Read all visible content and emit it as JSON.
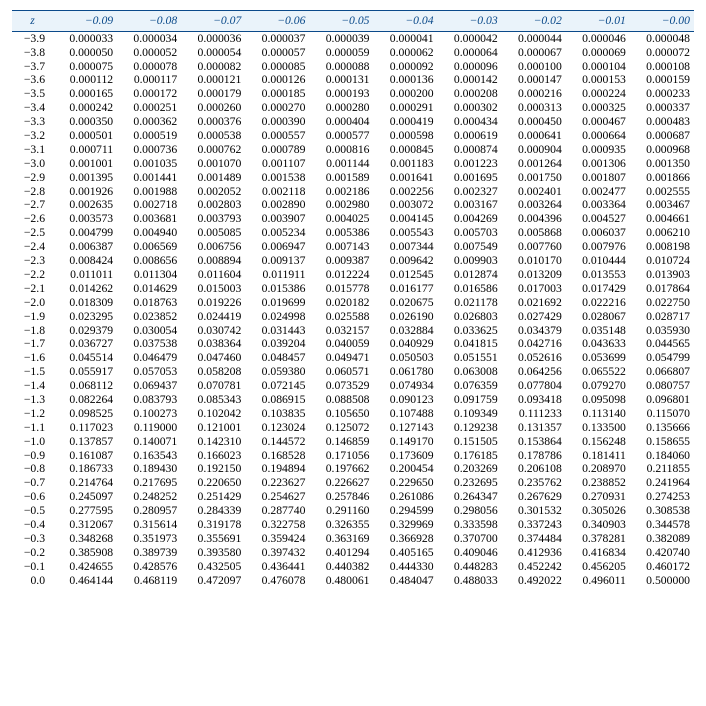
{
  "table": {
    "type": "table",
    "header_bg": "#eaf3fa",
    "header_color": "#0b4a8a",
    "rule_color": "#0b4a8a",
    "font_family": "Times New Roman",
    "header_fontsize_pt": 9,
    "body_fontsize_pt": 9,
    "z_label": "z",
    "minus_glyph": "−",
    "columns": [
      "−0.09",
      "−0.08",
      "−0.07",
      "−0.06",
      "−0.05",
      "−0.04",
      "−0.03",
      "−0.02",
      "−0.01",
      "−0.00"
    ],
    "rows": [
      {
        "z": "−3.9",
        "v": [
          "0.000033",
          "0.000034",
          "0.000036",
          "0.000037",
          "0.000039",
          "0.000041",
          "0.000042",
          "0.000044",
          "0.000046",
          "0.000048"
        ]
      },
      {
        "z": "−3.8",
        "v": [
          "0.000050",
          "0.000052",
          "0.000054",
          "0.000057",
          "0.000059",
          "0.000062",
          "0.000064",
          "0.000067",
          "0.000069",
          "0.000072"
        ]
      },
      {
        "z": "−3.7",
        "v": [
          "0.000075",
          "0.000078",
          "0.000082",
          "0.000085",
          "0.000088",
          "0.000092",
          "0.000096",
          "0.000100",
          "0.000104",
          "0.000108"
        ]
      },
      {
        "z": "−3.6",
        "v": [
          "0.000112",
          "0.000117",
          "0.000121",
          "0.000126",
          "0.000131",
          "0.000136",
          "0.000142",
          "0.000147",
          "0.000153",
          "0.000159"
        ]
      },
      {
        "z": "−3.5",
        "v": [
          "0.000165",
          "0.000172",
          "0.000179",
          "0.000185",
          "0.000193",
          "0.000200",
          "0.000208",
          "0.000216",
          "0.000224",
          "0.000233"
        ]
      },
      {
        "z": "−3.4",
        "v": [
          "0.000242",
          "0.000251",
          "0.000260",
          "0.000270",
          "0.000280",
          "0.000291",
          "0.000302",
          "0.000313",
          "0.000325",
          "0.000337"
        ]
      },
      {
        "z": "−3.3",
        "v": [
          "0.000350",
          "0.000362",
          "0.000376",
          "0.000390",
          "0.000404",
          "0.000419",
          "0.000434",
          "0.000450",
          "0.000467",
          "0.000483"
        ]
      },
      {
        "z": "−3.2",
        "v": [
          "0.000501",
          "0.000519",
          "0.000538",
          "0.000557",
          "0.000577",
          "0.000598",
          "0.000619",
          "0.000641",
          "0.000664",
          "0.000687"
        ]
      },
      {
        "z": "−3.1",
        "v": [
          "0.000711",
          "0.000736",
          "0.000762",
          "0.000789",
          "0.000816",
          "0.000845",
          "0.000874",
          "0.000904",
          "0.000935",
          "0.000968"
        ]
      },
      {
        "z": "−3.0",
        "v": [
          "0.001001",
          "0.001035",
          "0.001070",
          "0.001107",
          "0.001144",
          "0.001183",
          "0.001223",
          "0.001264",
          "0.001306",
          "0.001350"
        ]
      },
      {
        "z": "−2.9",
        "v": [
          "0.001395",
          "0.001441",
          "0.001489",
          "0.001538",
          "0.001589",
          "0.001641",
          "0.001695",
          "0.001750",
          "0.001807",
          "0.001866"
        ]
      },
      {
        "z": "−2.8",
        "v": [
          "0.001926",
          "0.001988",
          "0.002052",
          "0.002118",
          "0.002186",
          "0.002256",
          "0.002327",
          "0.002401",
          "0.002477",
          "0.002555"
        ]
      },
      {
        "z": "−2.7",
        "v": [
          "0.002635",
          "0.002718",
          "0.002803",
          "0.002890",
          "0.002980",
          "0.003072",
          "0.003167",
          "0.003264",
          "0.003364",
          "0.003467"
        ]
      },
      {
        "z": "−2.6",
        "v": [
          "0.003573",
          "0.003681",
          "0.003793",
          "0.003907",
          "0.004025",
          "0.004145",
          "0.004269",
          "0.004396",
          "0.004527",
          "0.004661"
        ]
      },
      {
        "z": "−2.5",
        "v": [
          "0.004799",
          "0.004940",
          "0.005085",
          "0.005234",
          "0.005386",
          "0.005543",
          "0.005703",
          "0.005868",
          "0.006037",
          "0.006210"
        ]
      },
      {
        "z": "−2.4",
        "v": [
          "0.006387",
          "0.006569",
          "0.006756",
          "0.006947",
          "0.007143",
          "0.007344",
          "0.007549",
          "0.007760",
          "0.007976",
          "0.008198"
        ]
      },
      {
        "z": "−2.3",
        "v": [
          "0.008424",
          "0.008656",
          "0.008894",
          "0.009137",
          "0.009387",
          "0.009642",
          "0.009903",
          "0.010170",
          "0.010444",
          "0.010724"
        ]
      },
      {
        "z": "−2.2",
        "v": [
          "0.011011",
          "0.011304",
          "0.011604",
          "0.011911",
          "0.012224",
          "0.012545",
          "0.012874",
          "0.013209",
          "0.013553",
          "0.013903"
        ]
      },
      {
        "z": "−2.1",
        "v": [
          "0.014262",
          "0.014629",
          "0.015003",
          "0.015386",
          "0.015778",
          "0.016177",
          "0.016586",
          "0.017003",
          "0.017429",
          "0.017864"
        ]
      },
      {
        "z": "−2.0",
        "v": [
          "0.018309",
          "0.018763",
          "0.019226",
          "0.019699",
          "0.020182",
          "0.020675",
          "0.021178",
          "0.021692",
          "0.022216",
          "0.022750"
        ]
      },
      {
        "z": "−1.9",
        "v": [
          "0.023295",
          "0.023852",
          "0.024419",
          "0.024998",
          "0.025588",
          "0.026190",
          "0.026803",
          "0.027429",
          "0.028067",
          "0.028717"
        ]
      },
      {
        "z": "−1.8",
        "v": [
          "0.029379",
          "0.030054",
          "0.030742",
          "0.031443",
          "0.032157",
          "0.032884",
          "0.033625",
          "0.034379",
          "0.035148",
          "0.035930"
        ]
      },
      {
        "z": "−1.7",
        "v": [
          "0.036727",
          "0.037538",
          "0.038364",
          "0.039204",
          "0.040059",
          "0.040929",
          "0.041815",
          "0.042716",
          "0.043633",
          "0.044565"
        ]
      },
      {
        "z": "−1.6",
        "v": [
          "0.045514",
          "0.046479",
          "0.047460",
          "0.048457",
          "0.049471",
          "0.050503",
          "0.051551",
          "0.052616",
          "0.053699",
          "0.054799"
        ]
      },
      {
        "z": "−1.5",
        "v": [
          "0.055917",
          "0.057053",
          "0.058208",
          "0.059380",
          "0.060571",
          "0.061780",
          "0.063008",
          "0.064256",
          "0.065522",
          "0.066807"
        ]
      },
      {
        "z": "−1.4",
        "v": [
          "0.068112",
          "0.069437",
          "0.070781",
          "0.072145",
          "0.073529",
          "0.074934",
          "0.076359",
          "0.077804",
          "0.079270",
          "0.080757"
        ]
      },
      {
        "z": "−1.3",
        "v": [
          "0.082264",
          "0.083793",
          "0.085343",
          "0.086915",
          "0.088508",
          "0.090123",
          "0.091759",
          "0.093418",
          "0.095098",
          "0.096801"
        ]
      },
      {
        "z": "−1.2",
        "v": [
          "0.098525",
          "0.100273",
          "0.102042",
          "0.103835",
          "0.105650",
          "0.107488",
          "0.109349",
          "0.111233",
          "0.113140",
          "0.115070"
        ]
      },
      {
        "z": "−1.1",
        "v": [
          "0.117023",
          "0.119000",
          "0.121001",
          "0.123024",
          "0.125072",
          "0.127143",
          "0.129238",
          "0.131357",
          "0.133500",
          "0.135666"
        ]
      },
      {
        "z": "−1.0",
        "v": [
          "0.137857",
          "0.140071",
          "0.142310",
          "0.144572",
          "0.146859",
          "0.149170",
          "0.151505",
          "0.153864",
          "0.156248",
          "0.158655"
        ]
      },
      {
        "z": "−0.9",
        "v": [
          "0.161087",
          "0.163543",
          "0.166023",
          "0.168528",
          "0.171056",
          "0.173609",
          "0.176185",
          "0.178786",
          "0.181411",
          "0.184060"
        ]
      },
      {
        "z": "−0.8",
        "v": [
          "0.186733",
          "0.189430",
          "0.192150",
          "0.194894",
          "0.197662",
          "0.200454",
          "0.203269",
          "0.206108",
          "0.208970",
          "0.211855"
        ]
      },
      {
        "z": "−0.7",
        "v": [
          "0.214764",
          "0.217695",
          "0.220650",
          "0.223627",
          "0.226627",
          "0.229650",
          "0.232695",
          "0.235762",
          "0.238852",
          "0.241964"
        ]
      },
      {
        "z": "−0.6",
        "v": [
          "0.245097",
          "0.248252",
          "0.251429",
          "0.254627",
          "0.257846",
          "0.261086",
          "0.264347",
          "0.267629",
          "0.270931",
          "0.274253"
        ]
      },
      {
        "z": "−0.5",
        "v": [
          "0.277595",
          "0.280957",
          "0.284339",
          "0.287740",
          "0.291160",
          "0.294599",
          "0.298056",
          "0.301532",
          "0.305026",
          "0.308538"
        ]
      },
      {
        "z": "−0.4",
        "v": [
          "0.312067",
          "0.315614",
          "0.319178",
          "0.322758",
          "0.326355",
          "0.329969",
          "0.333598",
          "0.337243",
          "0.340903",
          "0.344578"
        ]
      },
      {
        "z": "−0.3",
        "v": [
          "0.348268",
          "0.351973",
          "0.355691",
          "0.359424",
          "0.363169",
          "0.366928",
          "0.370700",
          "0.374484",
          "0.378281",
          "0.382089"
        ]
      },
      {
        "z": "−0.2",
        "v": [
          "0.385908",
          "0.389739",
          "0.393580",
          "0.397432",
          "0.401294",
          "0.405165",
          "0.409046",
          "0.412936",
          "0.416834",
          "0.420740"
        ]
      },
      {
        "z": "−0.1",
        "v": [
          "0.424655",
          "0.428576",
          "0.432505",
          "0.436441",
          "0.440382",
          "0.444330",
          "0.448283",
          "0.452242",
          "0.456205",
          "0.460172"
        ]
      },
      {
        "z": "0.0",
        "v": [
          "0.464144",
          "0.468119",
          "0.472097",
          "0.476078",
          "0.480061",
          "0.484047",
          "0.488033",
          "0.492022",
          "0.496011",
          "0.500000"
        ]
      }
    ]
  }
}
